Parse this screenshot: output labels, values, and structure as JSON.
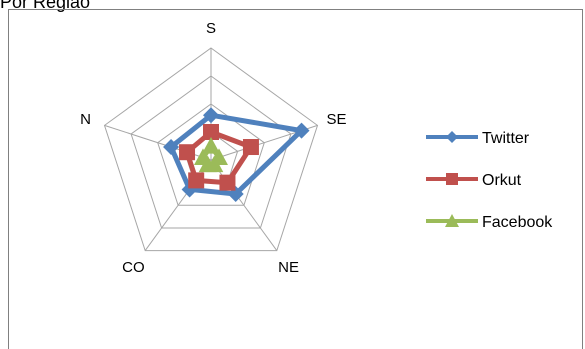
{
  "page": {
    "title": "Por Região"
  },
  "chart_data": {
    "type": "radar",
    "title": "",
    "axes": [
      "S",
      "SE",
      "NE",
      "CO",
      "N"
    ],
    "rmax": 4,
    "grid_levels": 4,
    "grid": true,
    "legend_position": "right",
    "series": [
      {
        "name": "Twitter",
        "values": [
          1.6,
          3.4,
          1.5,
          1.3,
          1.5
        ],
        "color": "#4F81BD",
        "marker": "diamond"
      },
      {
        "name": "Orkut",
        "values": [
          1.0,
          1.5,
          1.0,
          0.9,
          0.9
        ],
        "color": "#C0504D",
        "marker": "square"
      },
      {
        "name": "Facebook",
        "values": [
          0.5,
          0.3,
          0.2,
          0.2,
          0.3
        ],
        "color": "#9BBB59",
        "marker": "triangle"
      }
    ]
  }
}
